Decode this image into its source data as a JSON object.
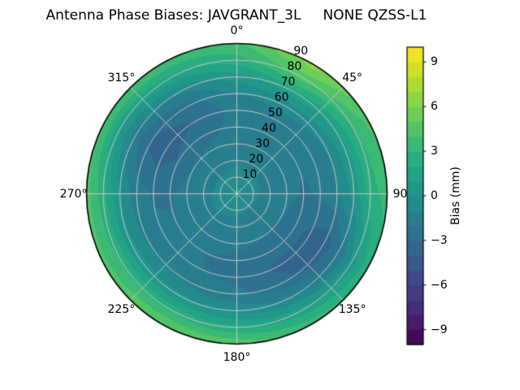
{
  "chart_data": {
    "type": "heatmap",
    "projection": "polar",
    "title": "Antenna Phase Biases: JAVGRANT_3L     NONE QZSS-L1",
    "theta_direction": "clockwise-from-north",
    "theta_tick_labels": [
      {
        "angle_deg": 0,
        "label": "0°"
      },
      {
        "angle_deg": 45,
        "label": "45°"
      },
      {
        "angle_deg": 90,
        "label": "90"
      },
      {
        "angle_deg": 135,
        "label": "135°"
      },
      {
        "angle_deg": 180,
        "label": "180°"
      },
      {
        "angle_deg": 225,
        "label": "225°"
      },
      {
        "angle_deg": 270,
        "label": "270°"
      },
      {
        "angle_deg": 315,
        "label": "315°"
      }
    ],
    "radial_tick_labels": [
      {
        "r": 10,
        "label": "10"
      },
      {
        "r": 20,
        "label": "20"
      },
      {
        "r": 30,
        "label": "30"
      },
      {
        "r": 40,
        "label": "40"
      },
      {
        "r": 50,
        "label": "50"
      },
      {
        "r": 60,
        "label": "60"
      },
      {
        "r": 70,
        "label": "70"
      },
      {
        "r": 80,
        "label": "80"
      },
      {
        "r": 90,
        "label": "90"
      }
    ],
    "radial_label_angle_deg": 22.5,
    "radial_range": [
      0,
      90
    ],
    "grid_color": "#c8c8c8",
    "outline_color": "#000000",
    "colorbar": {
      "label": "Bias (mm)",
      "tick_values": [
        9,
        6,
        3,
        0,
        -3,
        -6,
        -9
      ],
      "tick_labels": [
        "9",
        "6",
        "3",
        "0",
        "−3",
        "−6",
        "−9"
      ],
      "value_range": [
        -10,
        10
      ],
      "level_step": 1,
      "position": "right"
    },
    "colormap": {
      "name": "viridis",
      "stops": [
        "#440154",
        "#482475",
        "#414487",
        "#355f8d",
        "#2a788e",
        "#21918c",
        "#22a884",
        "#44bf70",
        "#7ad151",
        "#bddf26",
        "#fde725"
      ]
    },
    "azimuth_deg": [
      0,
      30,
      60,
      90,
      120,
      150,
      180,
      210,
      240,
      270,
      300,
      330
    ],
    "zenith_deg": [
      0,
      10,
      20,
      30,
      40,
      50,
      60,
      70,
      80,
      90
    ],
    "bias_mm": [
      [
        0.3,
        -0.6,
        -1.2,
        -1.5,
        -1.7,
        -1.6,
        -1.0,
        0.6,
        2.6,
        3.8
      ],
      [
        0.3,
        -0.6,
        -1.2,
        -1.5,
        -1.7,
        -1.4,
        -0.6,
        1.8,
        4.6,
        6.6
      ],
      [
        0.3,
        -0.7,
        -1.3,
        -1.6,
        -1.9,
        -1.7,
        -0.9,
        0.9,
        3.0,
        4.4
      ],
      [
        0.3,
        -0.8,
        -1.4,
        -1.8,
        -2.1,
        -1.9,
        -1.1,
        0.4,
        2.6,
        3.4
      ],
      [
        0.3,
        -0.9,
        -1.5,
        -2.0,
        -2.6,
        -3.3,
        -3.8,
        -2.2,
        0.4,
        2.8
      ],
      [
        0.3,
        -0.9,
        -1.5,
        -2.0,
        -2.7,
        -3.2,
        -2.8,
        -1.0,
        1.4,
        3.6
      ],
      [
        0.3,
        -0.8,
        -1.4,
        -1.8,
        -2.2,
        -2.3,
        -1.7,
        -0.3,
        2.2,
        4.8
      ],
      [
        0.3,
        -0.7,
        -1.3,
        -1.7,
        -2.0,
        -1.9,
        -1.2,
        0.2,
        2.8,
        5.2
      ],
      [
        0.3,
        -0.7,
        -1.2,
        -1.6,
        -1.9,
        -1.8,
        -1.1,
        0.4,
        2.9,
        4.4
      ],
      [
        0.3,
        -0.7,
        -1.3,
        -1.7,
        -2.1,
        -2.1,
        -1.5,
        -0.1,
        2.5,
        4.5
      ],
      [
        0.3,
        -0.8,
        -1.4,
        -2.0,
        -2.9,
        -3.6,
        -3.1,
        -1.5,
        1.0,
        4.3
      ],
      [
        0.3,
        -0.8,
        -1.3,
        -1.8,
        -2.4,
        -3.0,
        -2.4,
        -0.8,
        1.8,
        3.9
      ]
    ]
  }
}
